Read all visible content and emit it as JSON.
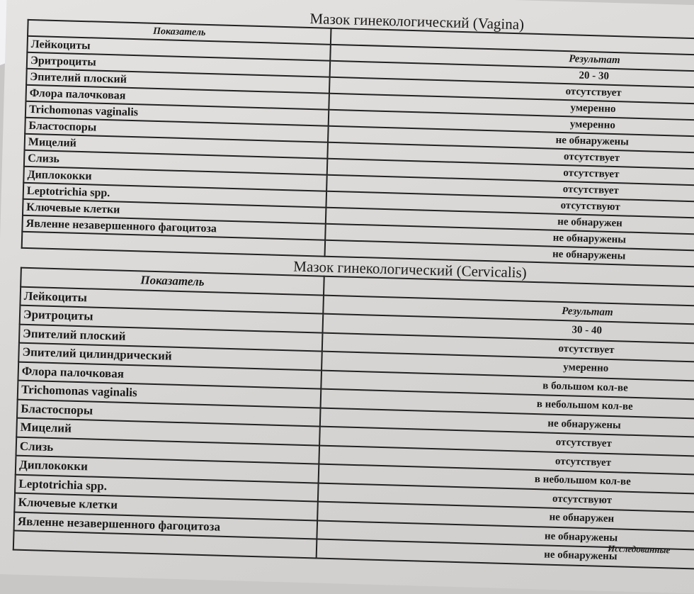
{
  "vagina": {
    "title": "Мазок гинекологический (Vagina)",
    "rows": [
      {
        "label": "Показатель",
        "result": ""
      },
      {
        "label": "Лейкоциты",
        "result": "Результат"
      },
      {
        "label": "Эритроциты",
        "result": "20 - 30"
      },
      {
        "label": "Эпителий плоский",
        "result": "отсутствует"
      },
      {
        "label": "Флора палочковая",
        "result": "умеренно"
      },
      {
        "label": "Trichomonas vaginalis",
        "result": "умеренно"
      },
      {
        "label": "Бластоспоры",
        "result": "не обнаружены"
      },
      {
        "label": "Мицелий",
        "result": "отсутствует"
      },
      {
        "label": "Слизь",
        "result": "отсутствует"
      },
      {
        "label": "Диплококки",
        "result": "отсутствует"
      },
      {
        "label": "Leptotrichia spp.",
        "result": "отсутствуют"
      },
      {
        "label": "Ключевые клетки",
        "result": "не обнаружен"
      },
      {
        "label": "Явленне незавершенного фагоцитоза",
        "result": "не обнаружены"
      },
      {
        "label": "",
        "result": "не обнаружены"
      }
    ]
  },
  "cervicalis": {
    "title": "Мазок гинекологический (Cervicalis)",
    "rows": [
      {
        "label": "Показатель",
        "result": ""
      },
      {
        "label": "Лейкоциты",
        "result": "Результат"
      },
      {
        "label": "Эритроциты",
        "result": "30 - 40"
      },
      {
        "label": "Эпителий плоский",
        "result": "отсутствует"
      },
      {
        "label": "Эпителий цилиндрический",
        "result": "умеренно"
      },
      {
        "label": "Флора палочковая",
        "result": "в большом кол-ве"
      },
      {
        "label": "Trichomonas vaginalis",
        "result": "в небольшом кол-ве"
      },
      {
        "label": "Бластоспоры",
        "result": "не обнаружены"
      },
      {
        "label": "Мицелий",
        "result": "отсутствует"
      },
      {
        "label": "Слизь",
        "result": "отсутствует"
      },
      {
        "label": "Диплококки",
        "result": "в небольшом кол-ве"
      },
      {
        "label": "Leptotrichia spp.",
        "result": "отсутствуют"
      },
      {
        "label": "Ключевые клетки",
        "result": "не обнаружен"
      },
      {
        "label": "Явленне незавершенного фагоцитоза",
        "result": "не обнаружены"
      },
      {
        "label": "",
        "result": "не обнаружены"
      }
    ]
  },
  "footer": "Исследованные"
}
